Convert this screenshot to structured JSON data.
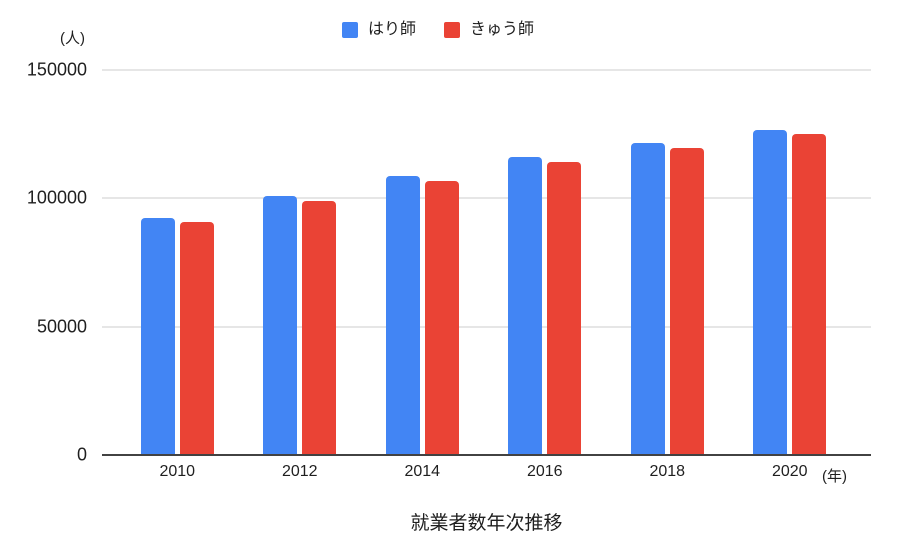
{
  "chart_data": {
    "type": "bar",
    "title": "就業者数年次推移",
    "categories": [
      "2010",
      "2012",
      "2014",
      "2016",
      "2018",
      "2020"
    ],
    "series": [
      {
        "name": "はり師",
        "color": "#4285f4",
        "values": [
          92421,
          100881,
          108537,
          116007,
          121757,
          126798
        ]
      },
      {
        "name": "きゅう師",
        "color": "#ea4335",
        "values": [
          90664,
          99118,
          106642,
          114048,
          119796,
          124956
        ]
      }
    ],
    "xlabel": "(年)",
    "ylabel": "(人)",
    "ylim": [
      0,
      150000
    ],
    "yticks": [
      0,
      50000,
      100000,
      150000
    ],
    "grid": true,
    "legend_position": "top",
    "axis_color": "#424242",
    "gridline_color": "#e6e6e6",
    "text_color": "#1f1f1f",
    "background": "#ffffff"
  }
}
